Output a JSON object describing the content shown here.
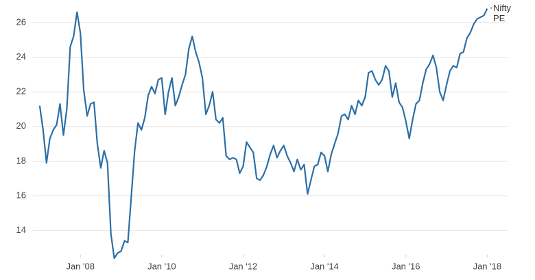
{
  "chart_data": {
    "type": "line",
    "x": [
      "2007-01",
      "2007-02",
      "2007-03",
      "2007-04",
      "2007-05",
      "2007-06",
      "2007-07",
      "2007-08",
      "2007-09",
      "2007-10",
      "2007-11",
      "2007-12",
      "2008-01",
      "2008-02",
      "2008-03",
      "2008-04",
      "2008-05",
      "2008-06",
      "2008-07",
      "2008-08",
      "2008-09",
      "2008-10",
      "2008-11",
      "2008-12",
      "2009-01",
      "2009-02",
      "2009-03",
      "2009-04",
      "2009-05",
      "2009-06",
      "2009-07",
      "2009-08",
      "2009-09",
      "2009-10",
      "2009-11",
      "2009-12",
      "2010-01",
      "2010-02",
      "2010-03",
      "2010-04",
      "2010-05",
      "2010-06",
      "2010-07",
      "2010-08",
      "2010-09",
      "2010-10",
      "2010-11",
      "2010-12",
      "2011-01",
      "2011-02",
      "2011-03",
      "2011-04",
      "2011-05",
      "2011-06",
      "2011-07",
      "2011-08",
      "2011-09",
      "2011-10",
      "2011-11",
      "2011-12",
      "2012-01",
      "2012-02",
      "2012-03",
      "2012-04",
      "2012-05",
      "2012-06",
      "2012-07",
      "2012-08",
      "2012-09",
      "2012-10",
      "2012-11",
      "2012-12",
      "2013-01",
      "2013-02",
      "2013-03",
      "2013-04",
      "2013-05",
      "2013-06",
      "2013-07",
      "2013-08",
      "2013-09",
      "2013-10",
      "2013-11",
      "2013-12",
      "2014-01",
      "2014-02",
      "2014-03",
      "2014-04",
      "2014-05",
      "2014-06",
      "2014-07",
      "2014-08",
      "2014-09",
      "2014-10",
      "2014-11",
      "2014-12",
      "2015-01",
      "2015-02",
      "2015-03",
      "2015-04",
      "2015-05",
      "2015-06",
      "2015-07",
      "2015-08",
      "2015-09",
      "2015-10",
      "2015-11",
      "2015-12",
      "2016-01",
      "2016-02",
      "2016-03",
      "2016-04",
      "2016-05",
      "2016-06",
      "2016-07",
      "2016-08",
      "2016-09",
      "2016-10",
      "2016-11",
      "2016-12",
      "2017-01",
      "2017-02",
      "2017-03",
      "2017-04",
      "2017-05",
      "2017-06",
      "2017-07",
      "2017-08",
      "2017-09",
      "2017-10",
      "2017-11",
      "2017-12",
      "2018-01"
    ],
    "series": [
      {
        "name": "Nifty PE",
        "color": "#2c6fa6",
        "values": [
          21.2,
          19.8,
          17.9,
          19.3,
          19.8,
          20.1,
          21.3,
          19.5,
          21.0,
          24.6,
          25.2,
          26.6,
          25.4,
          22.1,
          20.6,
          21.3,
          21.4,
          19.0,
          17.6,
          18.6,
          17.9,
          13.8,
          12.4,
          12.7,
          12.8,
          13.4,
          13.3,
          15.9,
          18.6,
          20.2,
          19.8,
          20.5,
          21.8,
          22.3,
          21.9,
          22.7,
          22.8,
          20.7,
          22.0,
          22.8,
          21.2,
          21.7,
          22.4,
          23.0,
          24.5,
          25.2,
          24.3,
          23.7,
          22.8,
          20.7,
          21.2,
          22.0,
          20.4,
          20.2,
          20.5,
          18.3,
          18.1,
          18.2,
          18.1,
          17.3,
          17.7,
          19.1,
          18.8,
          18.5,
          17.0,
          16.9,
          17.2,
          17.7,
          18.4,
          18.9,
          18.2,
          18.6,
          18.9,
          18.3,
          17.9,
          17.4,
          18.1,
          17.5,
          17.8,
          16.1,
          16.9,
          17.7,
          17.8,
          18.5,
          18.3,
          17.4,
          18.4,
          19.0,
          19.6,
          20.6,
          20.7,
          20.4,
          21.2,
          20.7,
          21.5,
          21.2,
          21.7,
          23.1,
          23.2,
          22.7,
          22.4,
          22.7,
          23.5,
          23.2,
          21.7,
          22.5,
          21.4,
          21.1,
          20.3,
          19.3,
          20.4,
          21.3,
          21.5,
          22.5,
          23.3,
          23.6,
          24.1,
          23.4,
          22.0,
          21.5,
          22.4,
          23.2,
          23.5,
          23.4,
          24.2,
          24.3,
          25.1,
          25.4,
          25.9,
          26.2,
          26.3,
          26.4,
          26.8
        ]
      }
    ],
    "xlim": [
      "2006-11",
      "2018-07"
    ],
    "xticks": [
      {
        "value": "2008-01",
        "label": "Jan '08"
      },
      {
        "value": "2010-01",
        "label": "Jan '10"
      },
      {
        "value": "2012-01",
        "label": "Jan '12"
      },
      {
        "value": "2014-01",
        "label": "Jan '14"
      },
      {
        "value": "2016-01",
        "label": "Jan '16"
      },
      {
        "value": "2018-01",
        "label": "Jan '18"
      }
    ],
    "ylim": [
      12.6,
      27.1
    ],
    "yticks": [
      14,
      16,
      18,
      20,
      22,
      24,
      26
    ],
    "grid": true
  }
}
